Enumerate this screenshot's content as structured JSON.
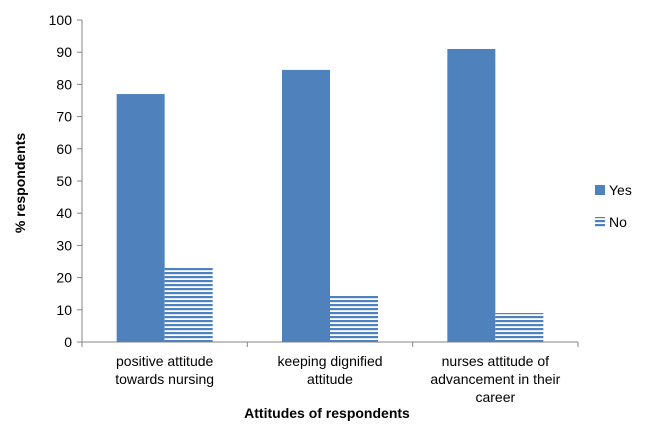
{
  "chart_data": {
    "type": "bar",
    "xlabel": "Attitudes of respondents",
    "ylabel": "% respondents",
    "ylim": [
      0,
      100
    ],
    "yticks": [
      0,
      10,
      20,
      30,
      40,
      50,
      60,
      70,
      80,
      90,
      100
    ],
    "grid": false,
    "legend_position": "right",
    "categories": [
      [
        "positive attitude",
        "towards nursing"
      ],
      [
        "keeping dignified",
        "attitude"
      ],
      [
        "nurses attitude of",
        "advancement in their",
        "career"
      ]
    ],
    "series": [
      {
        "name": "Yes",
        "values": [
          77,
          84.5,
          91
        ],
        "color": "#4F81BD",
        "pattern": "solid"
      },
      {
        "name": "No",
        "values": [
          23,
          14.5,
          9
        ],
        "color": "#4F81BD",
        "pattern": "horizontal-stripes"
      }
    ]
  }
}
